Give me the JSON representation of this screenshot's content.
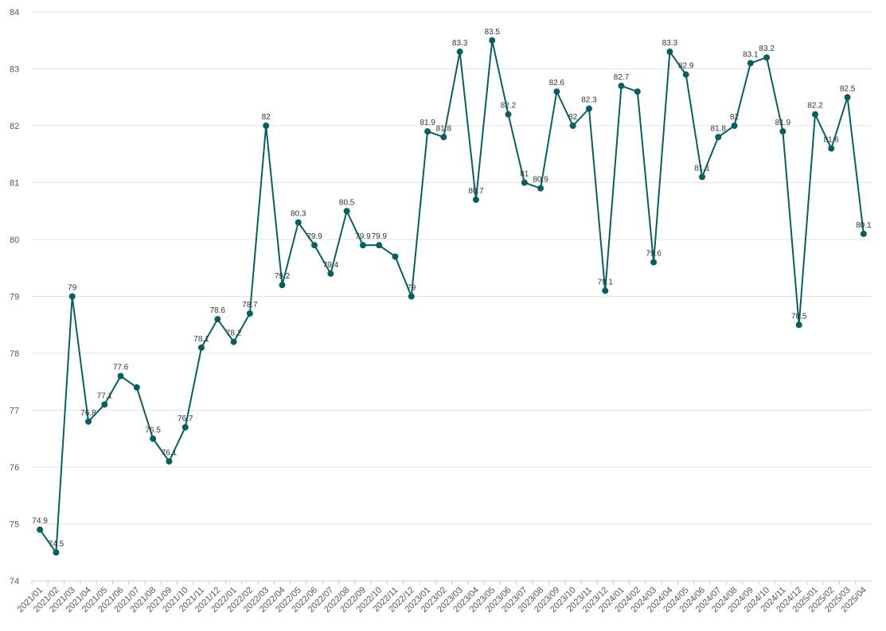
{
  "chart_data": {
    "type": "line",
    "categories": [
      "2021/01",
      "2021/02",
      "2021/03",
      "2021/04",
      "2021/05",
      "2021/06",
      "2021/07",
      "2021/08",
      "2021/09",
      "2021/10",
      "2021/11",
      "2021/12",
      "2022/01",
      "2022/02",
      "2022/03",
      "2022/04",
      "2022/05",
      "2022/06",
      "2022/07",
      "2022/08",
      "2022/09",
      "2022/10",
      "2022/11",
      "2022/12",
      "2023/01",
      "2023/02",
      "2023/03",
      "2023/04",
      "2023/05",
      "2023/06",
      "2023/07",
      "2023/08",
      "2023/09",
      "2023/10",
      "2023/11",
      "2023/12",
      "2024/01",
      "2024/02",
      "2024/03",
      "2024/04",
      "2024/05",
      "2024/06",
      "2024/07",
      "2024/08",
      "2024/09",
      "2024/10",
      "2024/11",
      "2024/12",
      "2025/01",
      "2025/02",
      "2025/03",
      "2025/04"
    ],
    "values": [
      74.9,
      74.5,
      79,
      76.8,
      77.1,
      77.6,
      77.4,
      76.5,
      76.1,
      76.7,
      78.1,
      78.6,
      78.2,
      78.7,
      82,
      79.2,
      80.3,
      79.9,
      79.4,
      80.5,
      79.9,
      79.9,
      79.7,
      79,
      81.9,
      81.8,
      83.3,
      80.7,
      83.5,
      82.2,
      81,
      80.9,
      82.6,
      82,
      82.3,
      79.1,
      82.7,
      82.6,
      79.6,
      83.3,
      82.9,
      81.1,
      81.8,
      82,
      83.1,
      83.2,
      81.9,
      78.5,
      82.2,
      81.6,
      82.5,
      80.1
    ],
    "value_labels": [
      "74.9",
      "74.5",
      "79",
      "76.8",
      "77.1",
      "77.6",
      null,
      "76.5",
      "76.1",
      "76.7",
      "78.1",
      "78.6",
      "78.2",
      "78.7",
      "82",
      "79.2",
      "80.3",
      "79.9",
      "79.4",
      "80.5",
      "79.9",
      "79.9",
      null,
      "79",
      "81.9",
      "81.8",
      "83.3",
      "80.7",
      "83.5",
      "82.2",
      "81",
      "80.9",
      "82.6",
      "82",
      "82.3",
      "79.1",
      "82.7",
      null,
      "79.6",
      "83.3",
      "82.9",
      "81.1",
      "81.8",
      "82",
      "83.1",
      "83.2",
      "81.9",
      "78.5",
      "82.2",
      "81.6",
      "82.5",
      "80.1"
    ],
    "color": "#0b5e5e",
    "ylim": [
      74,
      84
    ],
    "yticks": [
      74,
      75,
      76,
      77,
      78,
      79,
      80,
      81,
      82,
      83,
      84
    ],
    "grid": true
  }
}
